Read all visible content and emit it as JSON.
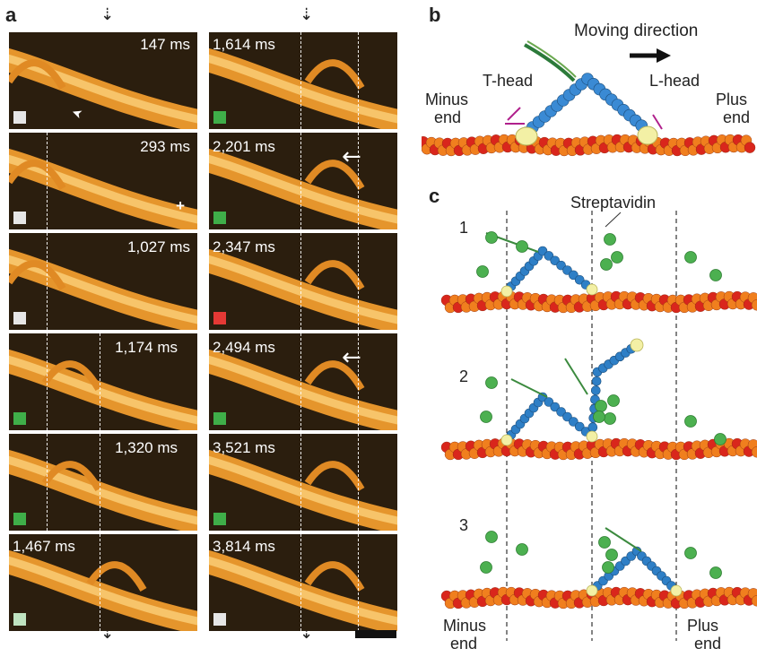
{
  "panel_labels": {
    "a": "a",
    "b": "b",
    "c": "c"
  },
  "timestamps": {
    "left": [
      "147 ms",
      "293 ms",
      "1,027 ms",
      "1,174 ms",
      "1,320 ms",
      "1,467 ms"
    ],
    "right": [
      "1,614 ms",
      "2,201 ms",
      "2,347 ms",
      "2,494 ms",
      "3,521 ms",
      "3,814 ms"
    ]
  },
  "indicator_colors": {
    "left": [
      "#e6e6e6",
      "#e6e6e6",
      "#e6e6e6",
      "#3fae49",
      "#3fae49",
      "#bfe3c0"
    ],
    "right": [
      "#3fae49",
      "#3fae49",
      "#e53935",
      "#3fae49",
      "#3fae49",
      "#e6e6e6"
    ]
  },
  "annotations": {
    "plus": "+",
    "arrowhead": "➤",
    "left_arrow": "←"
  },
  "panel_b": {
    "moving_direction": "Moving direction",
    "t_head": "T-head",
    "l_head": "L-head",
    "minus": "Minus",
    "minus_end": "end",
    "plus": "Plus",
    "plus_end": "end"
  },
  "panel_c": {
    "steps": [
      "1",
      "2",
      "3"
    ],
    "streptavidin": "Streptavidin",
    "minus": "Minus",
    "minus_end": "end",
    "plus": "Plus",
    "plus_end": "end"
  },
  "colors": {
    "filament": "#f2a93b",
    "frame_bg": "#2a1d0c",
    "microtubule_red": "#d9261c",
    "microtubule_orange": "#f07f1e",
    "myosin_blue": "#2e7fc6",
    "strep_green": "#4cb050"
  }
}
